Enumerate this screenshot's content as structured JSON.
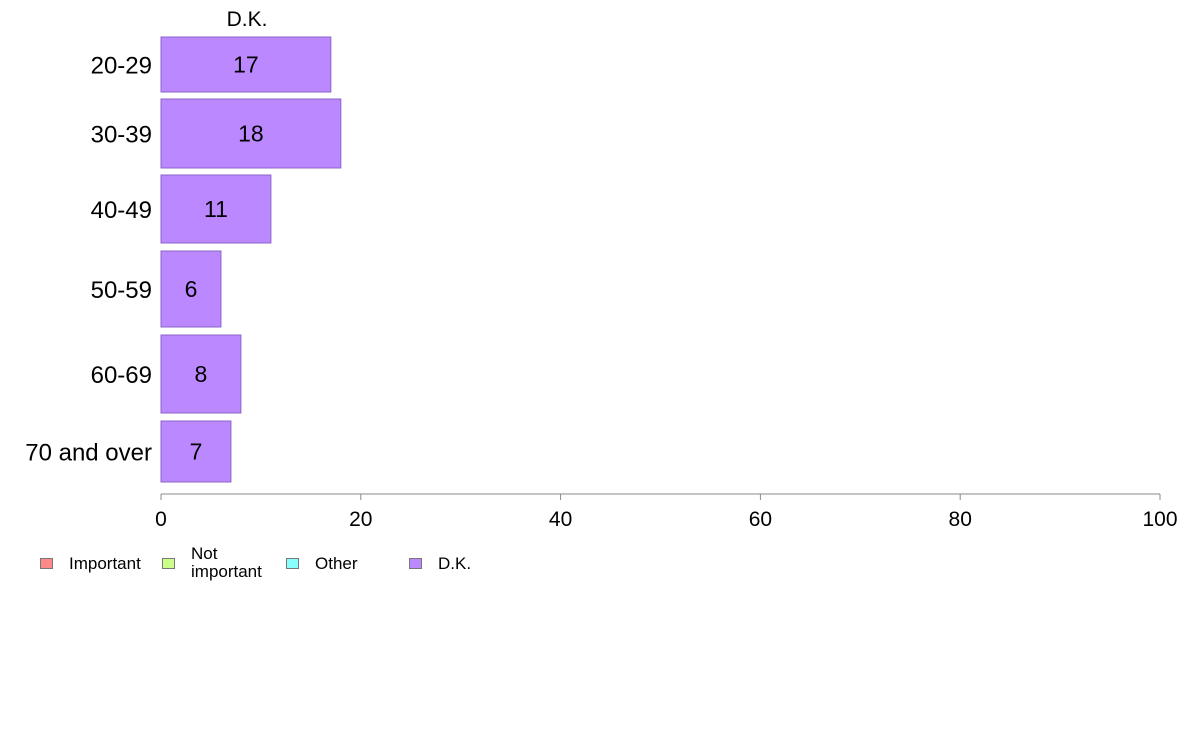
{
  "chart_data": {
    "type": "bar",
    "orientation": "horizontal",
    "panel_title": "D.K.",
    "categories": [
      "20-29",
      "30-39",
      "40-49",
      "50-59",
      "60-69",
      "70 and over"
    ],
    "series": [
      {
        "name": "D.K.",
        "values": [
          17,
          18,
          11,
          6,
          8,
          7
        ],
        "color": "#bb88ff"
      }
    ],
    "data_labels": [
      "17",
      "18",
      "11",
      "6",
      "8",
      "7"
    ],
    "xlim": [
      0,
      100
    ],
    "xticks": [
      "0",
      "20",
      "40",
      "60",
      "80",
      "100"
    ],
    "xlabel": "",
    "ylabel": "",
    "grid": false,
    "legend_position": "bottom-left"
  },
  "legend": {
    "items": [
      {
        "label": "Important",
        "color": "#ff8888"
      },
      {
        "label": "Not important",
        "color": "#ccff88"
      },
      {
        "label": "Other",
        "color": "#88ffff"
      },
      {
        "label": "D.K.",
        "color": "#bb88ff"
      }
    ]
  }
}
